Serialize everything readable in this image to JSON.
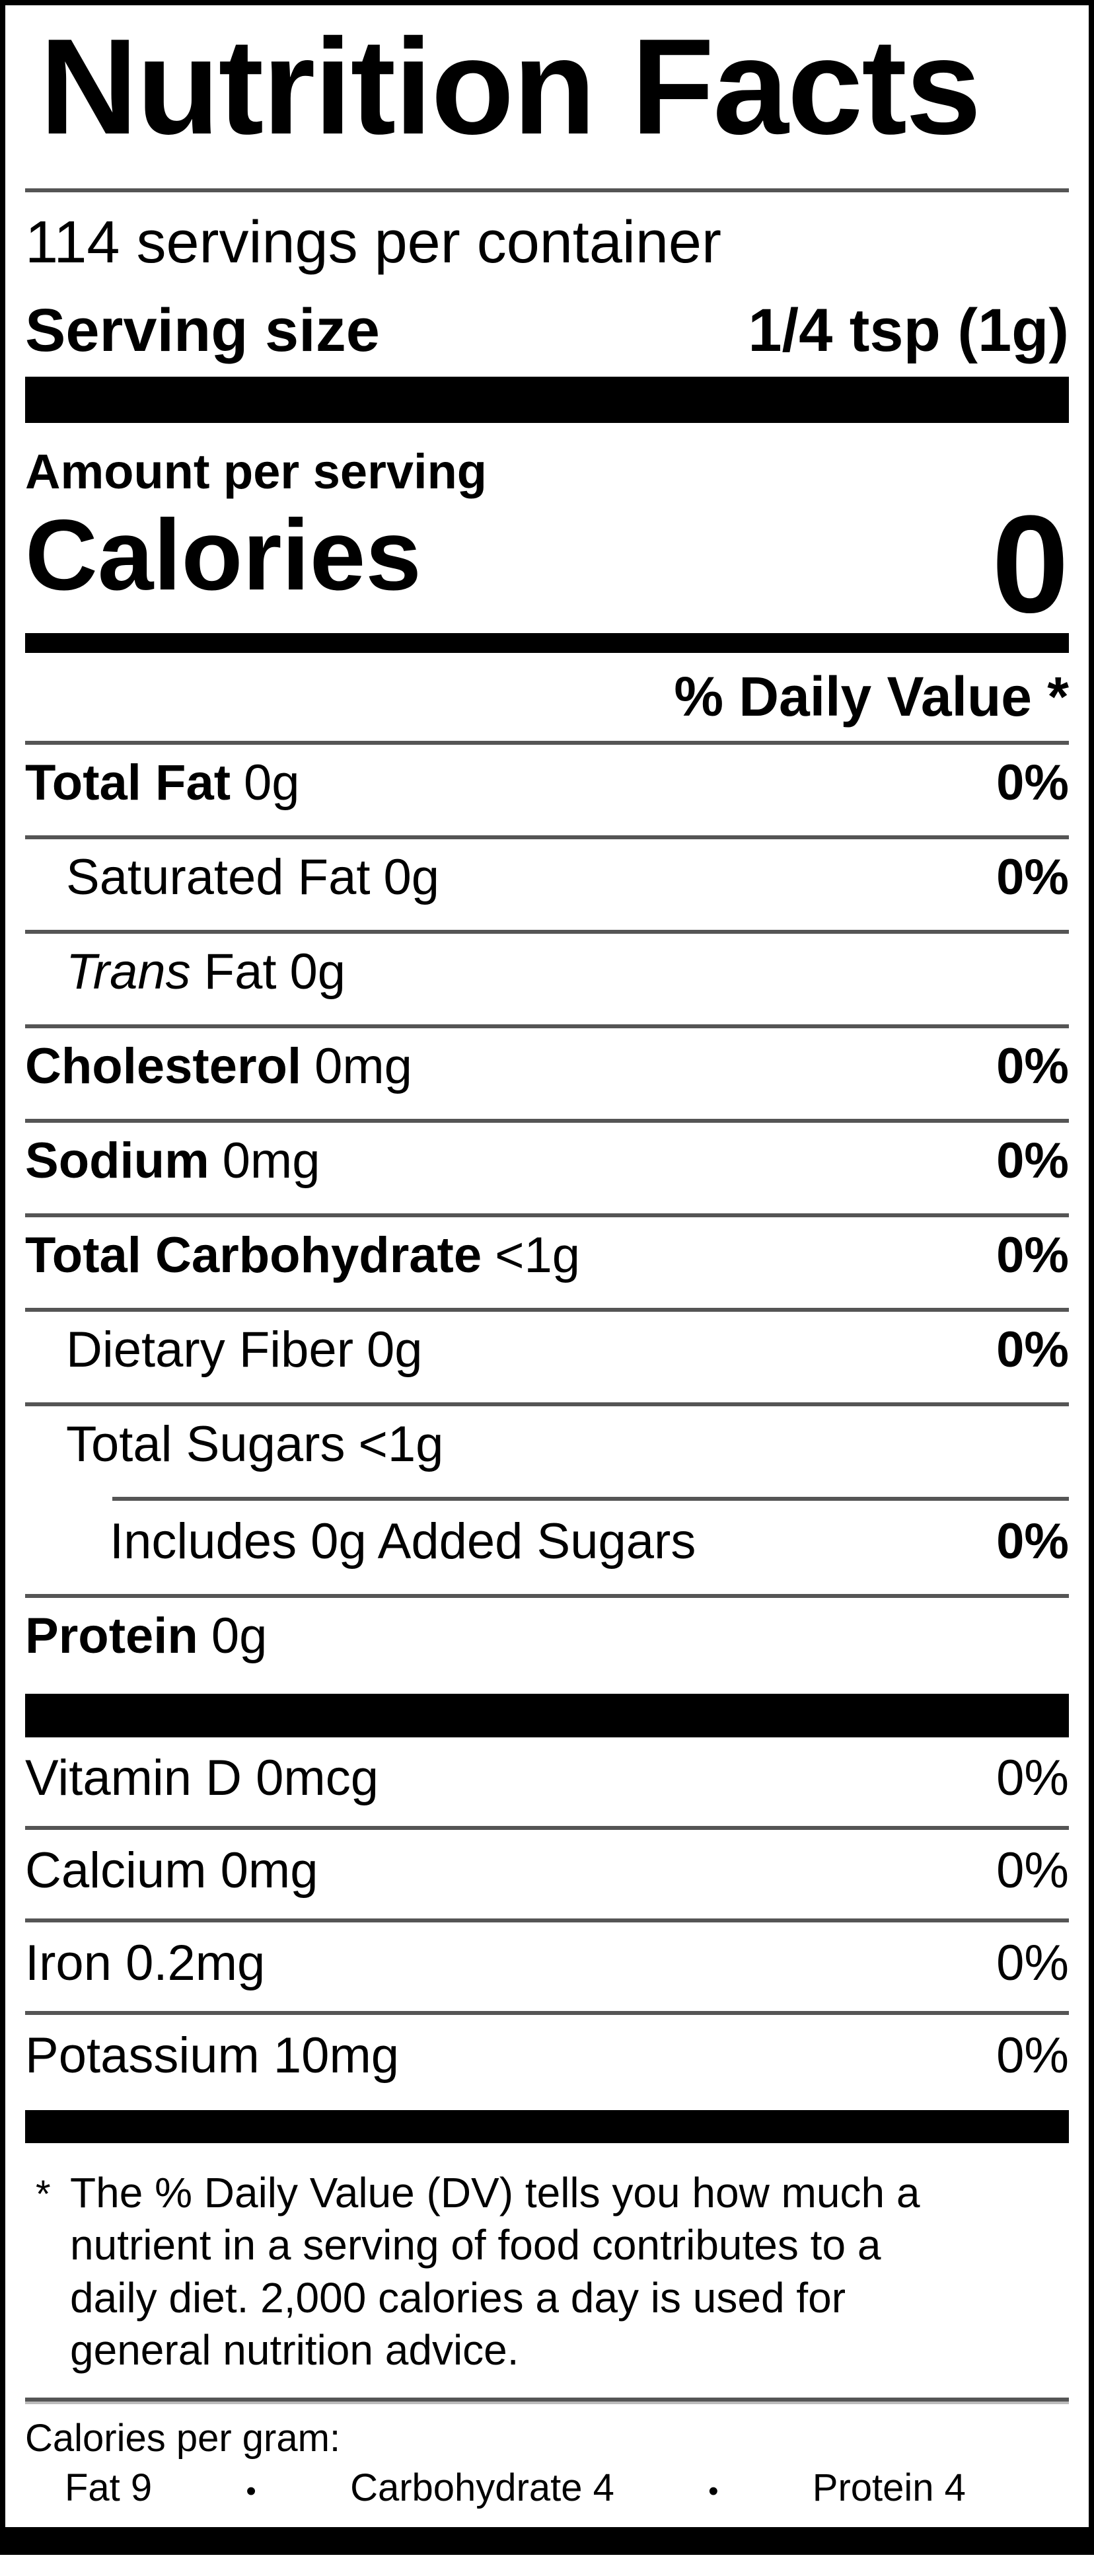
{
  "title": "Nutrition Facts",
  "servings_per_container": "114 servings per container",
  "serving_size": {
    "label": "Serving size",
    "value": "1/4 tsp (1g)"
  },
  "amount_per_serving": "Amount per serving",
  "calories": {
    "label": "Calories",
    "value": "0"
  },
  "daily_value_header": "% Daily Value *",
  "rows": [
    {
      "name": "Total Fat",
      "amount": "0g",
      "dv": "0%"
    },
    {
      "name": "Saturated Fat",
      "amount": "0g",
      "dv": "0%"
    },
    {
      "name_italic": "Trans",
      "name": "Fat",
      "amount": "0g",
      "dv": ""
    },
    {
      "name": "Cholesterol",
      "amount": "0mg",
      "dv": "0%"
    },
    {
      "name": "Sodium",
      "amount": "0mg",
      "dv": "0%"
    },
    {
      "name": "Total Carbohydrate",
      "amount": "<1g",
      "dv": "0%"
    },
    {
      "name": "Dietary Fiber",
      "amount": "0g",
      "dv": "0%"
    },
    {
      "name": "Total Sugars",
      "amount": "<1g",
      "dv": ""
    },
    {
      "name": "Includes 0g Added Sugars",
      "amount": "",
      "dv": "0%"
    },
    {
      "name": "Protein",
      "amount": "0g",
      "dv": ""
    }
  ],
  "micronutrients": [
    {
      "name": "Vitamin D 0mcg",
      "dv": "0%"
    },
    {
      "name": "Calcium 0mg",
      "dv": "0%"
    },
    {
      "name": "Iron 0.2mg",
      "dv": "0%"
    },
    {
      "name": "Potassium 10mg",
      "dv": "0%"
    }
  ],
  "footnote": {
    "marker": "*",
    "text": "The % Daily Value (DV) tells you how much a nutrient in a serving of food contributes to a daily diet. 2,000 calories a day is used for general nutrition advice."
  },
  "calories_per_gram": {
    "label": "Calories per gram:",
    "separator": "•",
    "items": [
      "Fat 9",
      "Carbohydrate 4",
      "Protein 4"
    ]
  }
}
